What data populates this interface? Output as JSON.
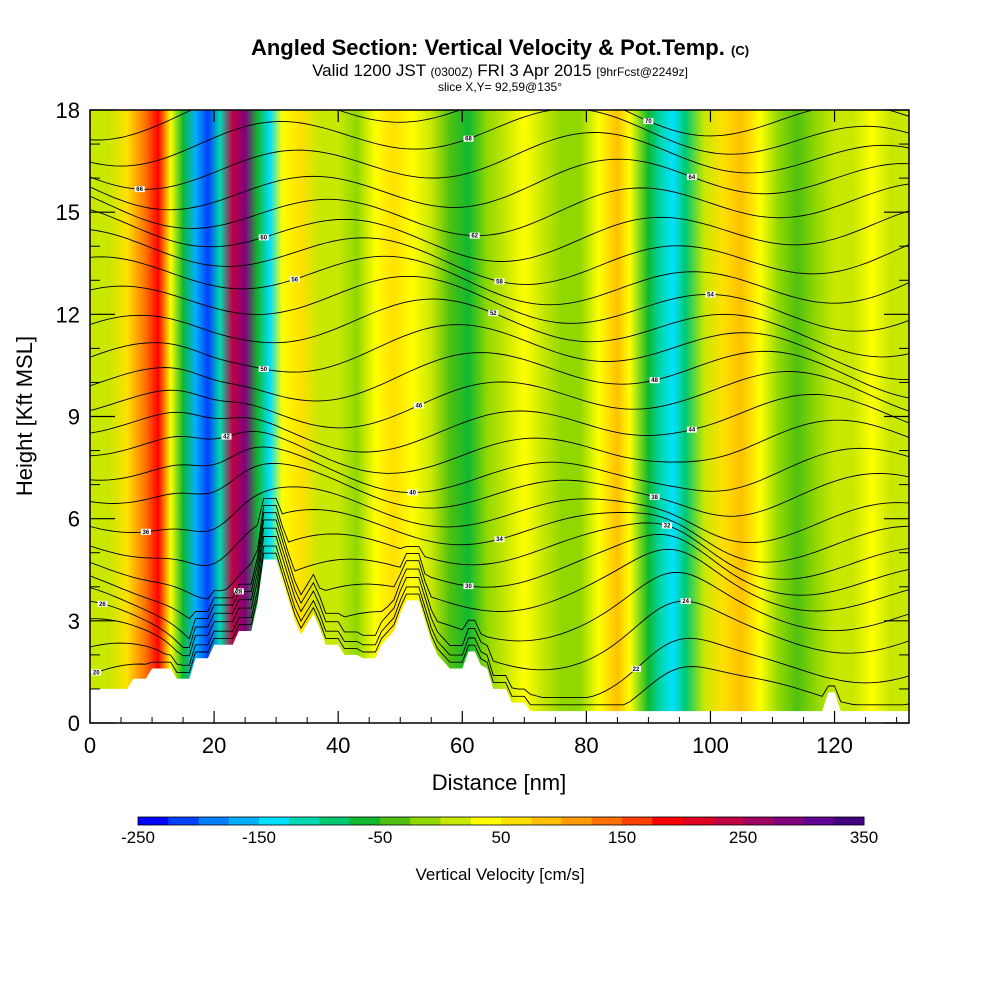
{
  "header": {
    "title": "Angled Section: Vertical Velocity & Pot.Temp.",
    "title_units": "(C)",
    "valid_main": "Valid 1200 JST",
    "valid_utc": "(0300Z)",
    "valid_date": "FRI 3 Apr 2015",
    "forecast": "[9hrFcst@2249z]",
    "slice": "slice X,Y= 92,59@135°"
  },
  "chart_data": {
    "type": "heatmap",
    "xlabel": "Distance [nm]",
    "ylabel": "Height [Kft MSL]",
    "xlim": [
      0,
      132
    ],
    "ylim": [
      0,
      18
    ],
    "x_ticks": [
      0,
      20,
      40,
      60,
      80,
      100,
      120
    ],
    "y_ticks": [
      0,
      3,
      6,
      9,
      12,
      15,
      18
    ],
    "colorbar": {
      "title": "Vertical Velocity [cm/s]",
      "min": -250,
      "max": 350,
      "labels": [
        "-250",
        "-150",
        "-50",
        "50",
        "150",
        "250",
        "350"
      ],
      "colors": [
        "#0000ff",
        "#0040ff",
        "#0080ff",
        "#00b0ff",
        "#00e0ff",
        "#00d8b0",
        "#00c870",
        "#10b830",
        "#50c010",
        "#90d800",
        "#c8e800",
        "#ffff00",
        "#ffe000",
        "#ffc000",
        "#ff9a00",
        "#ff7000",
        "#ff4000",
        "#ff0000",
        "#e00020",
        "#c00040",
        "#a00060",
        "#800080",
        "#600090",
        "#400080"
      ]
    },
    "vertical_velocity_columns": [
      {
        "x": 0,
        "w": 20
      },
      {
        "x": 3,
        "w": 10
      },
      {
        "x": 6,
        "w": 60
      },
      {
        "x": 9,
        "w": 130
      },
      {
        "x": 11,
        "w": 190
      },
      {
        "x": 13,
        "w": 40
      },
      {
        "x": 15,
        "w": -70
      },
      {
        "x": 17,
        "w": -160
      },
      {
        "x": 19,
        "w": -220
      },
      {
        "x": 21,
        "w": -120
      },
      {
        "x": 23,
        "w": 230
      },
      {
        "x": 25,
        "w": 280
      },
      {
        "x": 27,
        "w": -60
      },
      {
        "x": 29,
        "w": -130
      },
      {
        "x": 31,
        "w": 40
      },
      {
        "x": 34,
        "w": 60
      },
      {
        "x": 37,
        "w": 20
      },
      {
        "x": 40,
        "w": 10
      },
      {
        "x": 43,
        "w": -10
      },
      {
        "x": 46,
        "w": 30
      },
      {
        "x": 49,
        "w": 60
      },
      {
        "x": 52,
        "w": 40
      },
      {
        "x": 55,
        "w": 20
      },
      {
        "x": 58,
        "w": -40
      },
      {
        "x": 61,
        "w": -60
      },
      {
        "x": 64,
        "w": -20
      },
      {
        "x": 67,
        "w": 10
      },
      {
        "x": 70,
        "w": 30
      },
      {
        "x": 73,
        "w": 20
      },
      {
        "x": 76,
        "w": -20
      },
      {
        "x": 79,
        "w": -10
      },
      {
        "x": 82,
        "w": 30
      },
      {
        "x": 85,
        "w": 90
      },
      {
        "x": 87,
        "w": 40
      },
      {
        "x": 90,
        "w": -60
      },
      {
        "x": 92,
        "w": -110
      },
      {
        "x": 94,
        "w": -140
      },
      {
        "x": 96,
        "w": -90
      },
      {
        "x": 99,
        "w": 0
      },
      {
        "x": 102,
        "w": 60
      },
      {
        "x": 105,
        "w": 90
      },
      {
        "x": 108,
        "w": 30
      },
      {
        "x": 111,
        "w": -20
      },
      {
        "x": 114,
        "w": -40
      },
      {
        "x": 117,
        "w": -10
      },
      {
        "x": 120,
        "w": 20
      },
      {
        "x": 123,
        "w": 10
      },
      {
        "x": 126,
        "w": 30
      },
      {
        "x": 129,
        "w": 20
      },
      {
        "x": 132,
        "w": 10
      }
    ],
    "terrain": [
      [
        0,
        1.0
      ],
      [
        6,
        1.0
      ],
      [
        7,
        1.3
      ],
      [
        9,
        1.3
      ],
      [
        10,
        1.6
      ],
      [
        13,
        1.6
      ],
      [
        14,
        1.3
      ],
      [
        16,
        1.3
      ],
      [
        17,
        1.9
      ],
      [
        19,
        1.9
      ],
      [
        20,
        2.3
      ],
      [
        23,
        2.3
      ],
      [
        24,
        2.7
      ],
      [
        26,
        2.7
      ],
      [
        27,
        3.5
      ],
      [
        28,
        4.8
      ],
      [
        30,
        4.8
      ],
      [
        31,
        4.2
      ],
      [
        32,
        3.6
      ],
      [
        33,
        3.0
      ],
      [
        34,
        2.6
      ],
      [
        35,
        2.9
      ],
      [
        36,
        3.2
      ],
      [
        37,
        2.8
      ],
      [
        38,
        2.3
      ],
      [
        40,
        2.3
      ],
      [
        41,
        2.0
      ],
      [
        43,
        2.0
      ],
      [
        44,
        1.9
      ],
      [
        46,
        1.9
      ],
      [
        47,
        2.3
      ],
      [
        49,
        2.7
      ],
      [
        50,
        3.2
      ],
      [
        51,
        3.6
      ],
      [
        53,
        3.6
      ],
      [
        54,
        3.0
      ],
      [
        55,
        2.4
      ],
      [
        56,
        2.0
      ],
      [
        57,
        1.8
      ],
      [
        58,
        1.6
      ],
      [
        60,
        1.6
      ],
      [
        61,
        2.1
      ],
      [
        62,
        2.1
      ],
      [
        63,
        1.7
      ],
      [
        64,
        1.6
      ],
      [
        65,
        1.0
      ],
      [
        67,
        1.0
      ],
      [
        68,
        0.6
      ],
      [
        70,
        0.6
      ],
      [
        71,
        0.35
      ],
      [
        118,
        0.35
      ],
      [
        119,
        0.9
      ],
      [
        120,
        0.9
      ],
      [
        121,
        0.35
      ],
      [
        132,
        0.35
      ]
    ],
    "theta_contours": [
      {
        "level": 20,
        "base": 0.9,
        "label_x": 1
      },
      {
        "level": 22,
        "base": 1.5,
        "label_x": 88
      },
      {
        "level": 24,
        "base": 2.3,
        "label_x": 96
      },
      {
        "level": 26,
        "base": 3.0,
        "label_x": 2
      },
      {
        "level": 28,
        "base": 3.7,
        "label_x": 24
      },
      {
        "level": 30,
        "base": 4.3,
        "label_x": 61
      },
      {
        "level": 32,
        "base": 4.9,
        "label_x": 93
      },
      {
        "level": 34,
        "base": 5.5,
        "label_x": 66
      },
      {
        "level": 36,
        "base": 6.1,
        "label_x": 9
      },
      {
        "level": 38,
        "base": 6.8,
        "label_x": 91
      },
      {
        "level": 40,
        "base": 7.4,
        "label_x": 52
      },
      {
        "level": 42,
        "base": 8.1,
        "label_x": 22
      },
      {
        "level": 44,
        "base": 8.8,
        "label_x": 97
      },
      {
        "level": 46,
        "base": 9.5,
        "label_x": 53
      },
      {
        "level": 48,
        "base": 10.2,
        "label_x": 91
      },
      {
        "level": 50,
        "base": 10.9,
        "label_x": 28
      },
      {
        "level": 52,
        "base": 11.6,
        "label_x": 65
      },
      {
        "level": 54,
        "base": 12.3,
        "label_x": 100
      },
      {
        "level": 56,
        "base": 13.0,
        "label_x": 33
      },
      {
        "level": 58,
        "base": 13.7,
        "label_x": 66
      },
      {
        "level": 60,
        "base": 14.4,
        "label_x": 28
      },
      {
        "level": 62,
        "base": 15.1,
        "label_x": 62
      },
      {
        "level": 64,
        "base": 15.8,
        "label_x": 97
      },
      {
        "level": 66,
        "base": 16.5,
        "label_x": 8
      },
      {
        "level": 68,
        "base": 17.2,
        "label_x": 61
      },
      {
        "level": 70,
        "base": 17.9,
        "label_x": 90
      }
    ]
  }
}
